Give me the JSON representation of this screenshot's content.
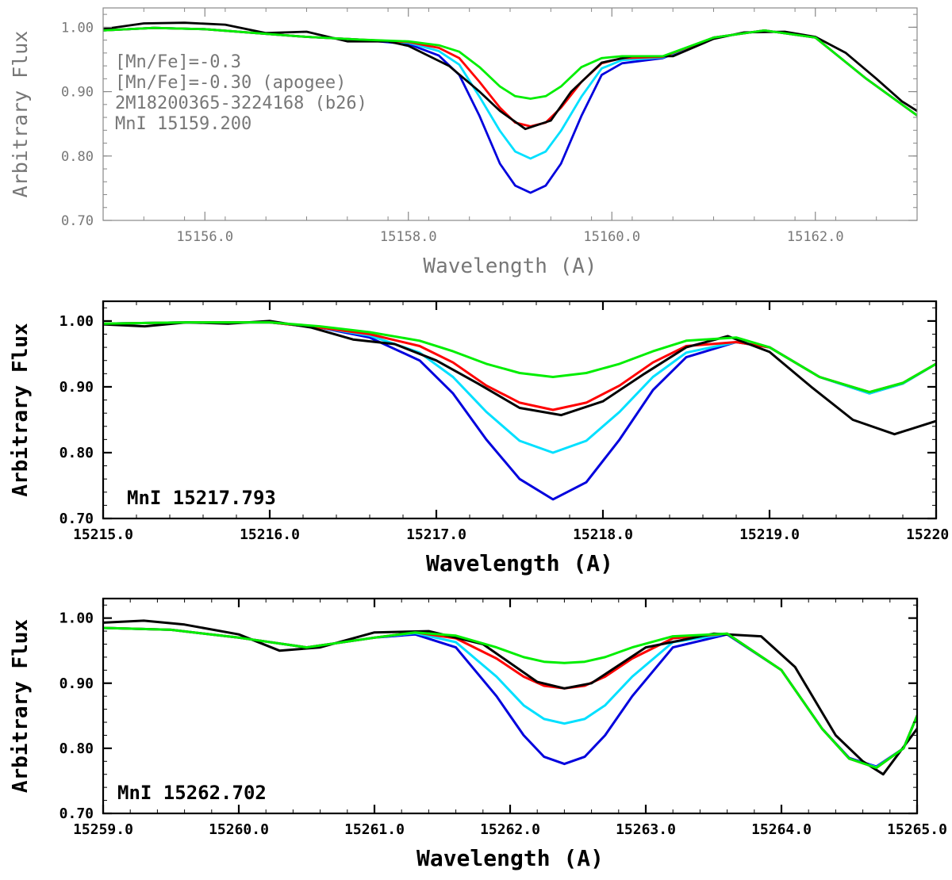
{
  "chart_data": [
    {
      "type": "line",
      "style": "light",
      "xlabel": "Wavelength (A)",
      "ylabel": "Arbitrary Flux",
      "xlim": [
        15155.0,
        15163.0
      ],
      "ylim": [
        0.7,
        1.03
      ],
      "xticks": [
        15156.0,
        15158.0,
        15160.0,
        15162.0
      ],
      "xtick_labels": [
        "15156.0",
        "15158.0",
        "15160.0",
        "15162.0"
      ],
      "yticks": [
        0.7,
        0.8,
        0.9,
        1.0
      ],
      "ytick_labels": [
        "0.70",
        "0.80",
        "0.90",
        "1.00"
      ],
      "annotations": [
        "[Mn/Fe]=-0.3",
        "[Mn/Fe]=-0.30 (apogee)",
        "2M18200365-3224168 (b26)",
        "MnI 15159.200"
      ],
      "series": [
        {
          "color": "#0000dd",
          "x": [
            15155.0,
            15155.5,
            15156.0,
            15156.5,
            15157.0,
            15157.5,
            15158.0,
            15158.3,
            15158.5,
            15158.7,
            15158.9,
            15159.05,
            15159.2,
            15159.35,
            15159.5,
            15159.7,
            15159.9,
            15160.1,
            15160.5,
            15161.0,
            15161.5,
            15162.0,
            15162.5,
            15163.0
          ],
          "y": [
            0.995,
            0.999,
            0.997,
            0.991,
            0.985,
            0.981,
            0.974,
            0.956,
            0.926,
            0.862,
            0.788,
            0.754,
            0.743,
            0.754,
            0.788,
            0.862,
            0.926,
            0.944,
            0.952,
            0.984,
            0.995,
            0.984,
            0.92,
            0.863
          ]
        },
        {
          "color": "#00e0ff",
          "x": [
            15155.0,
            15155.5,
            15156.0,
            15156.5,
            15157.0,
            15157.5,
            15158.0,
            15158.3,
            15158.5,
            15158.7,
            15158.9,
            15159.05,
            15159.2,
            15159.35,
            15159.5,
            15159.7,
            15159.9,
            15160.1,
            15160.5,
            15161.0,
            15161.5,
            15162.0,
            15162.5,
            15163.0
          ],
          "y": [
            0.995,
            0.999,
            0.997,
            0.991,
            0.985,
            0.981,
            0.976,
            0.963,
            0.942,
            0.892,
            0.839,
            0.807,
            0.796,
            0.807,
            0.839,
            0.892,
            0.936,
            0.949,
            0.953,
            0.984,
            0.995,
            0.984,
            0.92,
            0.863
          ]
        },
        {
          "color": "#ff0000",
          "x": [
            15155.0,
            15155.5,
            15156.0,
            15156.5,
            15157.0,
            15157.5,
            15158.0,
            15158.3,
            15158.5,
            15158.7,
            15158.9,
            15159.05,
            15159.2,
            15159.35,
            15159.5,
            15159.7,
            15159.9,
            15160.1,
            15160.5,
            15161.0,
            15161.5,
            15162.0,
            15162.5,
            15163.0
          ],
          "y": [
            0.995,
            0.999,
            0.997,
            0.991,
            0.985,
            0.981,
            0.977,
            0.968,
            0.952,
            0.915,
            0.875,
            0.852,
            0.846,
            0.852,
            0.875,
            0.915,
            0.944,
            0.952,
            0.954,
            0.984,
            0.995,
            0.984,
            0.92,
            0.863
          ]
        },
        {
          "color": "#000000",
          "x": [
            15155.0,
            15155.4,
            15155.8,
            15156.2,
            15156.6,
            15157.0,
            15157.4,
            15157.8,
            15158.0,
            15158.4,
            15158.7,
            15158.9,
            15159.15,
            15159.4,
            15159.6,
            15159.9,
            15160.2,
            15160.6,
            15161.0,
            15161.3,
            15161.7,
            15162.0,
            15162.3,
            15162.6,
            15162.85,
            15163.0
          ],
          "y": [
            0.997,
            1.006,
            1.007,
            1.004,
            0.991,
            0.993,
            0.978,
            0.978,
            0.971,
            0.94,
            0.9,
            0.87,
            0.842,
            0.855,
            0.9,
            0.945,
            0.955,
            0.955,
            0.982,
            0.992,
            0.993,
            0.985,
            0.96,
            0.92,
            0.885,
            0.87
          ]
        },
        {
          "color": "#00ee00",
          "x": [
            15155.0,
            15155.5,
            15156.0,
            15156.5,
            15157.0,
            15157.5,
            15158.0,
            15158.3,
            15158.5,
            15158.7,
            15158.9,
            15159.05,
            15159.2,
            15159.35,
            15159.5,
            15159.7,
            15159.9,
            15160.1,
            15160.5,
            15161.0,
            15161.5,
            15162.0,
            15162.5,
            15163.0
          ],
          "y": [
            0.995,
            0.999,
            0.997,
            0.991,
            0.985,
            0.981,
            0.978,
            0.972,
            0.962,
            0.938,
            0.908,
            0.893,
            0.889,
            0.893,
            0.908,
            0.938,
            0.952,
            0.955,
            0.955,
            0.984,
            0.995,
            0.984,
            0.92,
            0.863
          ]
        }
      ]
    },
    {
      "type": "line",
      "style": "bold",
      "xlabel": "Wavelength (A)",
      "ylabel": "Arbitrary Flux",
      "xlim": [
        15215.0,
        15220.0
      ],
      "ylim": [
        0.7,
        1.03
      ],
      "xticks": [
        15215.0,
        15216.0,
        15217.0,
        15218.0,
        15219.0,
        15220.0
      ],
      "xtick_labels": [
        "15215.0",
        "15216.0",
        "15217.0",
        "15218.0",
        "15219.0",
        "15220.0"
      ],
      "yticks": [
        0.7,
        0.8,
        0.9,
        1.0
      ],
      "ytick_labels": [
        "0.70",
        "0.80",
        "0.90",
        "1.00"
      ],
      "annotations": [
        "MnI 15217.793"
      ],
      "series": [
        {
          "color": "#0000dd",
          "x": [
            15215.0,
            15215.5,
            15216.0,
            15216.3,
            15216.6,
            15216.9,
            15217.1,
            15217.3,
            15217.5,
            15217.7,
            15217.9,
            15218.1,
            15218.3,
            15218.5,
            15218.8,
            15219.0,
            15219.3,
            15219.6,
            15219.8,
            15220.0
          ],
          "y": [
            0.996,
            0.998,
            0.998,
            0.99,
            0.975,
            0.94,
            0.89,
            0.82,
            0.76,
            0.729,
            0.755,
            0.82,
            0.895,
            0.945,
            0.968,
            0.96,
            0.915,
            0.89,
            0.905,
            0.935
          ]
        },
        {
          "color": "#00e0ff",
          "x": [
            15215.0,
            15215.5,
            15216.0,
            15216.3,
            15216.6,
            15216.9,
            15217.1,
            15217.3,
            15217.5,
            15217.7,
            15217.9,
            15218.1,
            15218.3,
            15218.5,
            15218.8,
            15219.0,
            15219.3,
            15219.6,
            15219.8,
            15220.0
          ],
          "y": [
            0.996,
            0.998,
            0.998,
            0.99,
            0.978,
            0.952,
            0.915,
            0.862,
            0.818,
            0.8,
            0.818,
            0.862,
            0.915,
            0.952,
            0.968,
            0.96,
            0.915,
            0.89,
            0.905,
            0.935
          ]
        },
        {
          "color": "#ff0000",
          "x": [
            15215.0,
            15215.5,
            15216.0,
            15216.3,
            15216.6,
            15216.9,
            15217.1,
            15217.3,
            15217.5,
            15217.7,
            15217.9,
            15218.1,
            15218.3,
            15218.5,
            15218.8,
            15219.0,
            15219.3,
            15219.6,
            15219.8,
            15220.0
          ],
          "y": [
            0.996,
            0.998,
            0.998,
            0.99,
            0.98,
            0.962,
            0.937,
            0.902,
            0.876,
            0.865,
            0.876,
            0.902,
            0.937,
            0.962,
            0.968,
            0.96,
            0.915,
            0.892,
            0.906,
            0.935
          ]
        },
        {
          "color": "#000000",
          "x": [
            15215.0,
            15215.25,
            15215.5,
            15215.75,
            15216.0,
            15216.25,
            15216.5,
            15216.75,
            15217.0,
            15217.25,
            15217.5,
            15217.75,
            15218.0,
            15218.25,
            15218.5,
            15218.75,
            15219.0,
            15219.25,
            15219.5,
            15219.75,
            15220.0
          ],
          "y": [
            0.995,
            0.992,
            0.998,
            0.996,
            1.0,
            0.99,
            0.972,
            0.965,
            0.94,
            0.905,
            0.868,
            0.857,
            0.878,
            0.92,
            0.96,
            0.977,
            0.953,
            0.9,
            0.85,
            0.828,
            0.848
          ]
        },
        {
          "color": "#00ee00",
          "x": [
            15215.0,
            15215.5,
            15216.0,
            15216.3,
            15216.6,
            15216.9,
            15217.1,
            15217.3,
            15217.5,
            15217.7,
            15217.9,
            15218.1,
            15218.3,
            15218.5,
            15218.8,
            15219.0,
            15219.3,
            15219.6,
            15219.8,
            15220.0
          ],
          "y": [
            0.996,
            0.998,
            0.998,
            0.992,
            0.983,
            0.97,
            0.954,
            0.935,
            0.921,
            0.915,
            0.921,
            0.935,
            0.954,
            0.97,
            0.975,
            0.96,
            0.915,
            0.892,
            0.906,
            0.935
          ]
        }
      ]
    },
    {
      "type": "line",
      "style": "bold",
      "xlabel": "Wavelength (A)",
      "ylabel": "Arbitrary Flux",
      "xlim": [
        15259.0,
        15265.0
      ],
      "ylim": [
        0.7,
        1.03
      ],
      "xticks": [
        15259.0,
        15260.0,
        15261.0,
        15262.0,
        15263.0,
        15264.0,
        15265.0
      ],
      "xtick_labels": [
        "15259.0",
        "15260.0",
        "15261.0",
        "15262.0",
        "15263.0",
        "15264.0",
        "15265.0"
      ],
      "yticks": [
        0.7,
        0.8,
        0.9,
        1.0
      ],
      "ytick_labels": [
        "0.70",
        "0.80",
        "0.90",
        "1.00"
      ],
      "annotations": [
        "MnI 15262.702"
      ],
      "series": [
        {
          "color": "#0000dd",
          "x": [
            15259.0,
            15259.5,
            15260.0,
            15260.5,
            15261.0,
            15261.3,
            15261.6,
            15261.9,
            15262.1,
            15262.25,
            15262.4,
            15262.55,
            15262.7,
            15262.9,
            15263.2,
            15263.6,
            15264.0,
            15264.3,
            15264.5,
            15264.7,
            15264.9,
            15265.0
          ],
          "y": [
            0.985,
            0.982,
            0.97,
            0.955,
            0.97,
            0.975,
            0.955,
            0.88,
            0.82,
            0.787,
            0.776,
            0.787,
            0.82,
            0.88,
            0.955,
            0.975,
            0.92,
            0.83,
            0.785,
            0.772,
            0.8,
            0.85
          ]
        },
        {
          "color": "#00e0ff",
          "x": [
            15259.0,
            15259.5,
            15260.0,
            15260.5,
            15261.0,
            15261.3,
            15261.6,
            15261.9,
            15262.1,
            15262.25,
            15262.4,
            15262.55,
            15262.7,
            15262.9,
            15263.2,
            15263.6,
            15264.0,
            15264.3,
            15264.5,
            15264.7,
            15264.9,
            15265.0
          ],
          "y": [
            0.985,
            0.982,
            0.97,
            0.955,
            0.97,
            0.977,
            0.963,
            0.91,
            0.866,
            0.845,
            0.838,
            0.845,
            0.866,
            0.91,
            0.963,
            0.976,
            0.92,
            0.83,
            0.784,
            0.771,
            0.8,
            0.85
          ]
        },
        {
          "color": "#ff0000",
          "x": [
            15259.0,
            15259.5,
            15260.0,
            15260.5,
            15261.0,
            15261.3,
            15261.6,
            15261.9,
            15262.1,
            15262.25,
            15262.4,
            15262.55,
            15262.7,
            15262.9,
            15263.2,
            15263.6,
            15264.0,
            15264.3,
            15264.5,
            15264.7,
            15264.9,
            15265.0
          ],
          "y": [
            0.985,
            0.982,
            0.97,
            0.955,
            0.97,
            0.978,
            0.969,
            0.938,
            0.91,
            0.896,
            0.892,
            0.896,
            0.91,
            0.938,
            0.969,
            0.976,
            0.92,
            0.83,
            0.784,
            0.77,
            0.8,
            0.85
          ]
        },
        {
          "color": "#000000",
          "x": [
            15259.0,
            15259.3,
            15259.6,
            15260.0,
            15260.3,
            15260.6,
            15261.0,
            15261.4,
            15261.8,
            15262.2,
            15262.4,
            15262.6,
            15263.0,
            15263.5,
            15263.85,
            15264.1,
            15264.4,
            15264.6,
            15264.75,
            15265.0
          ],
          "y": [
            0.993,
            0.996,
            0.99,
            0.975,
            0.95,
            0.955,
            0.978,
            0.98,
            0.96,
            0.902,
            0.892,
            0.9,
            0.955,
            0.976,
            0.972,
            0.925,
            0.82,
            0.78,
            0.76,
            0.83
          ]
        },
        {
          "color": "#00ee00",
          "x": [
            15259.0,
            15259.5,
            15260.0,
            15260.5,
            15261.0,
            15261.3,
            15261.6,
            15261.9,
            15262.1,
            15262.25,
            15262.4,
            15262.55,
            15262.7,
            15262.9,
            15263.2,
            15263.6,
            15264.0,
            15264.3,
            15264.5,
            15264.7,
            15264.9,
            15265.0
          ],
          "y": [
            0.985,
            0.982,
            0.97,
            0.955,
            0.97,
            0.978,
            0.973,
            0.955,
            0.94,
            0.933,
            0.931,
            0.933,
            0.94,
            0.955,
            0.972,
            0.976,
            0.92,
            0.83,
            0.784,
            0.77,
            0.8,
            0.85
          ]
        }
      ]
    }
  ]
}
